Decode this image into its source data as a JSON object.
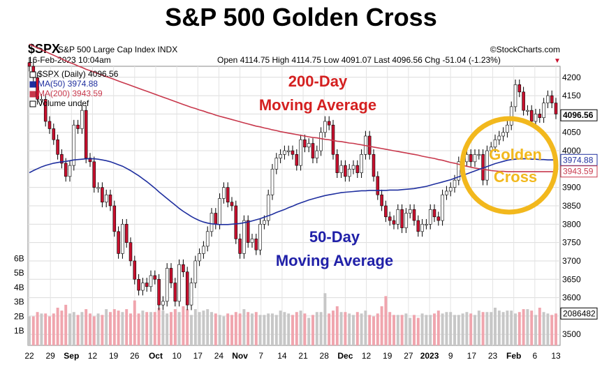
{
  "title": "S&P 500 Golden Cross",
  "header": {
    "symbol": "$SPX",
    "name": "S&P 500 Large Cap Index INDX",
    "datetime": "16-Feb-2023 10:04am",
    "source": "©StockCharts.com",
    "ohlc": "Open 4114.75 High 4114.75 Low 4091.07 Last 4096.56 Chg -51.04 (-1.23%)",
    "chg_arrow": "▼"
  },
  "legend": [
    {
      "text": "$SPX (Daily) 4096.56",
      "color": "#000000"
    },
    {
      "text": "MA(50) 3974.88",
      "color": "#1f2f9f"
    },
    {
      "text": "MA(200) 3943.59",
      "color": "#c8384c"
    },
    {
      "text": "Volume undef",
      "color": "#000000"
    }
  ],
  "annotations": {
    "ma200": [
      "200-Day",
      "Moving Average"
    ],
    "ma50": [
      "50-Day",
      "Moving Average"
    ],
    "golden": [
      "Golden",
      "Cross"
    ]
  },
  "chart_data": {
    "type": "candlestick",
    "x_tick_labels": [
      "22",
      "29",
      "Sep",
      "12",
      "19",
      "26",
      "Oct",
      "10",
      "17",
      "24",
      "Nov",
      "7",
      "14",
      "21",
      "28",
      "Dec",
      "12",
      "19",
      "27",
      "2023",
      "9",
      "17",
      "23",
      "Feb",
      "6",
      "13"
    ],
    "y_ticks": [
      3500,
      3550,
      3600,
      3650,
      3700,
      3750,
      3800,
      3850,
      3900,
      3950,
      4000,
      4050,
      4100,
      4150,
      4200
    ],
    "y_tick_labels": [
      "3500",
      "",
      "3600",
      "3650",
      "3700",
      "3750",
      "3800",
      "3850",
      "3900",
      "",
      "4000",
      "4050",
      "",
      "4150",
      "4200"
    ],
    "ylim": [
      3470,
      4230
    ],
    "volume_ticks": [
      "1B",
      "2B",
      "3B",
      "4B",
      "5B",
      "6B"
    ],
    "volume_ylim": [
      0,
      6.5
    ],
    "price_tags": [
      {
        "text": "4096.56",
        "value": 4096.56,
        "color": "#000000",
        "bold": true
      },
      {
        "text": "3974.88",
        "value": 3974.88,
        "color": "#1f2f9f",
        "bold": false
      },
      {
        "text": "3943.59",
        "value": 3943.59,
        "color": "#c8384c",
        "bold": false
      }
    ],
    "volume_tag": "2086482",
    "close": [
      4230,
      4199,
      4140,
      4140,
      4080,
      4060,
      4030,
      3990,
      3966,
      3930,
      3960,
      4070,
      4060,
      4110,
      3980,
      3970,
      3900,
      3900,
      3860,
      3880,
      3850,
      3780,
      3720,
      3800,
      3750,
      3700,
      3650,
      3620,
      3640,
      3630,
      3660,
      3650,
      3580,
      3590,
      3680,
      3640,
      3590,
      3690,
      3670,
      3580,
      3640,
      3700,
      3720,
      3740,
      3780,
      3830,
      3800,
      3870,
      3900,
      3860,
      3850,
      3760,
      3720,
      3810,
      3750,
      3760,
      3730,
      3800,
      3810,
      3880,
      3950,
      3980,
      3990,
      4000,
      4000,
      3990,
      3960,
      4030,
      4010,
      4020,
      3980,
      4000,
      4050,
      4080,
      4070,
      3990,
      3940,
      3960,
      3930,
      3950,
      3960,
      3940,
      3990,
      4040,
      3990,
      3930,
      3880,
      3850,
      3820,
      3810,
      3800,
      3840,
      3790,
      3830,
      3840,
      3810,
      3780,
      3800,
      3800,
      3840,
      3820,
      3810,
      3880,
      3890,
      3900,
      3920,
      3970,
      3970,
      3990,
      3970,
      3990,
      3990,
      3920,
      4000,
      4010,
      4030,
      4040,
      4050,
      4070,
      4120,
      4180,
      4160,
      4110,
      4110,
      4080,
      4100,
      4090,
      4130,
      4150,
      4130,
      4100
    ],
    "ma50": [
      3940,
      3946,
      3951,
      3956,
      3960,
      3963,
      3966,
      3968,
      3970,
      3971,
      3973,
      3975,
      3976,
      3977,
      3978,
      3978,
      3978,
      3977,
      3975,
      3973,
      3970,
      3966,
      3962,
      3958,
      3952,
      3946,
      3939,
      3932,
      3924,
      3916,
      3907,
      3898,
      3888,
      3879,
      3870,
      3861,
      3852,
      3843,
      3835,
      3828,
      3821,
      3815,
      3810,
      3806,
      3803,
      3801,
      3800,
      3799,
      3799,
      3799,
      3800,
      3801,
      3802,
      3804,
      3806,
      3809,
      3812,
      3815,
      3819,
      3823,
      3827,
      3832,
      3836,
      3840,
      3845,
      3849,
      3854,
      3858,
      3862,
      3866,
      3869,
      3872,
      3875,
      3878,
      3880,
      3882,
      3884,
      3886,
      3887,
      3888,
      3889,
      3890,
      3891,
      3891,
      3892,
      3892,
      3892,
      3892,
      3892,
      3893,
      3893,
      3893,
      3894,
      3895,
      3896,
      3897,
      3899,
      3901,
      3903,
      3906,
      3909,
      3912,
      3915,
      3918,
      3921,
      3925,
      3929,
      3933,
      3937,
      3941,
      3945,
      3949,
      3953,
      3957,
      3961,
      3965,
      3968,
      3971,
      3974,
      3976,
      3977,
      3978,
      3978,
      3978,
      3977,
      3977,
      3976,
      3976,
      3975,
      3975,
      3975
    ],
    "ma200": [
      4290,
      4285,
      4280,
      4275,
      4270,
      4265,
      4260,
      4255,
      4250,
      4245,
      4240,
      4236,
      4231,
      4227,
      4222,
      4218,
      4214,
      4210,
      4206,
      4202,
      4198,
      4194,
      4190,
      4186,
      4182,
      4178,
      4174,
      4170,
      4166,
      4162,
      4158,
      4154,
      4150,
      4146,
      4142,
      4138,
      4134,
      4130,
      4126,
      4122,
      4118,
      4115,
      4111,
      4108,
      4104,
      4101,
      4097,
      4094,
      4091,
      4088,
      4085,
      4082,
      4079,
      4076,
      4073,
      4070,
      4067,
      4065,
      4062,
      4060,
      4057,
      4055,
      4052,
      4050,
      4048,
      4046,
      4044,
      4042,
      4040,
      4038,
      4036,
      4035,
      4033,
      4031,
      4030,
      4028,
      4026,
      4025,
      4023,
      4021,
      4020,
      4018,
      4016,
      4014,
      4012,
      4010,
      4008,
      4006,
      4004,
      4002,
      4000,
      3998,
      3996,
      3994,
      3992,
      3990,
      3988,
      3985,
      3983,
      3981,
      3979,
      3976,
      3974,
      3971,
      3968,
      3966,
      3963,
      3960,
      3958,
      3955,
      3953,
      3951,
      3949,
      3948,
      3946,
      3945,
      3944,
      3944,
      3943,
      3943,
      3943,
      3943,
      3943,
      3943,
      3943,
      3943,
      3943,
      3943,
      3943,
      3943,
      3943
    ],
    "volume": [
      2.0,
      2.0,
      2.3,
      2.2,
      2.2,
      2.0,
      2.2,
      2.6,
      2.4,
      2.8,
      2.2,
      2.3,
      2.1,
      2.3,
      2.5,
      2.2,
      2.0,
      2.2,
      2.1,
      2.5,
      2.3,
      2.5,
      2.4,
      2.3,
      2.5,
      2.2,
      3.1,
      2.2,
      2.4,
      2.3,
      2.3,
      2.3,
      2.6,
      2.4,
      2.2,
      2.3,
      2.5,
      2.3,
      2.7,
      2.5,
      2.1,
      2.5,
      2.3,
      2.4,
      2.5,
      2.3,
      2.2,
      2.1,
      2.0,
      2.2,
      2.1,
      2.3,
      2.2,
      2.5,
      2.3,
      2.2,
      2.3,
      2.1,
      2.1,
      2.2,
      2.2,
      2.1,
      2.4,
      2.3,
      2.2,
      2.1,
      2.3,
      2.4,
      2.2,
      1.9,
      2.1,
      2.3,
      2.3,
      3.6,
      2.2,
      2.4,
      2.7,
      2.3,
      2.3,
      2.2,
      2.1,
      2.3,
      2.2,
      2.4,
      2.1,
      2.0,
      2.2,
      2.7,
      3.4,
      2.3,
      2.1,
      2.1,
      2.1,
      2.2,
      1.9,
      2.1,
      1.9,
      2.2,
      2.1,
      2.1,
      2.2,
      2.4,
      2.2,
      2.3,
      2.3,
      2.1,
      2.1,
      2.2,
      2.3,
      2.2,
      2.1,
      2.4,
      2.3,
      2.3,
      2.3,
      2.6,
      2.4,
      2.3,
      2.4,
      2.4,
      2.2,
      2.3,
      2.5,
      2.5,
      2.4,
      2.1,
      2.6,
      2.3,
      2.2,
      2.1,
      2.2
    ],
    "vol_up_color": "#c7c7c7",
    "vol_down_color": "#f0a5ae",
    "candle_down_color": "#c8102e",
    "candle_up_color": "#ffffff",
    "ma50_color": "#1f2f9f",
    "ma200_color": "#c8384c",
    "golden_color": "#f2b81d",
    "annotation_red": "#d42020",
    "annotation_blue": "#2020a8"
  }
}
